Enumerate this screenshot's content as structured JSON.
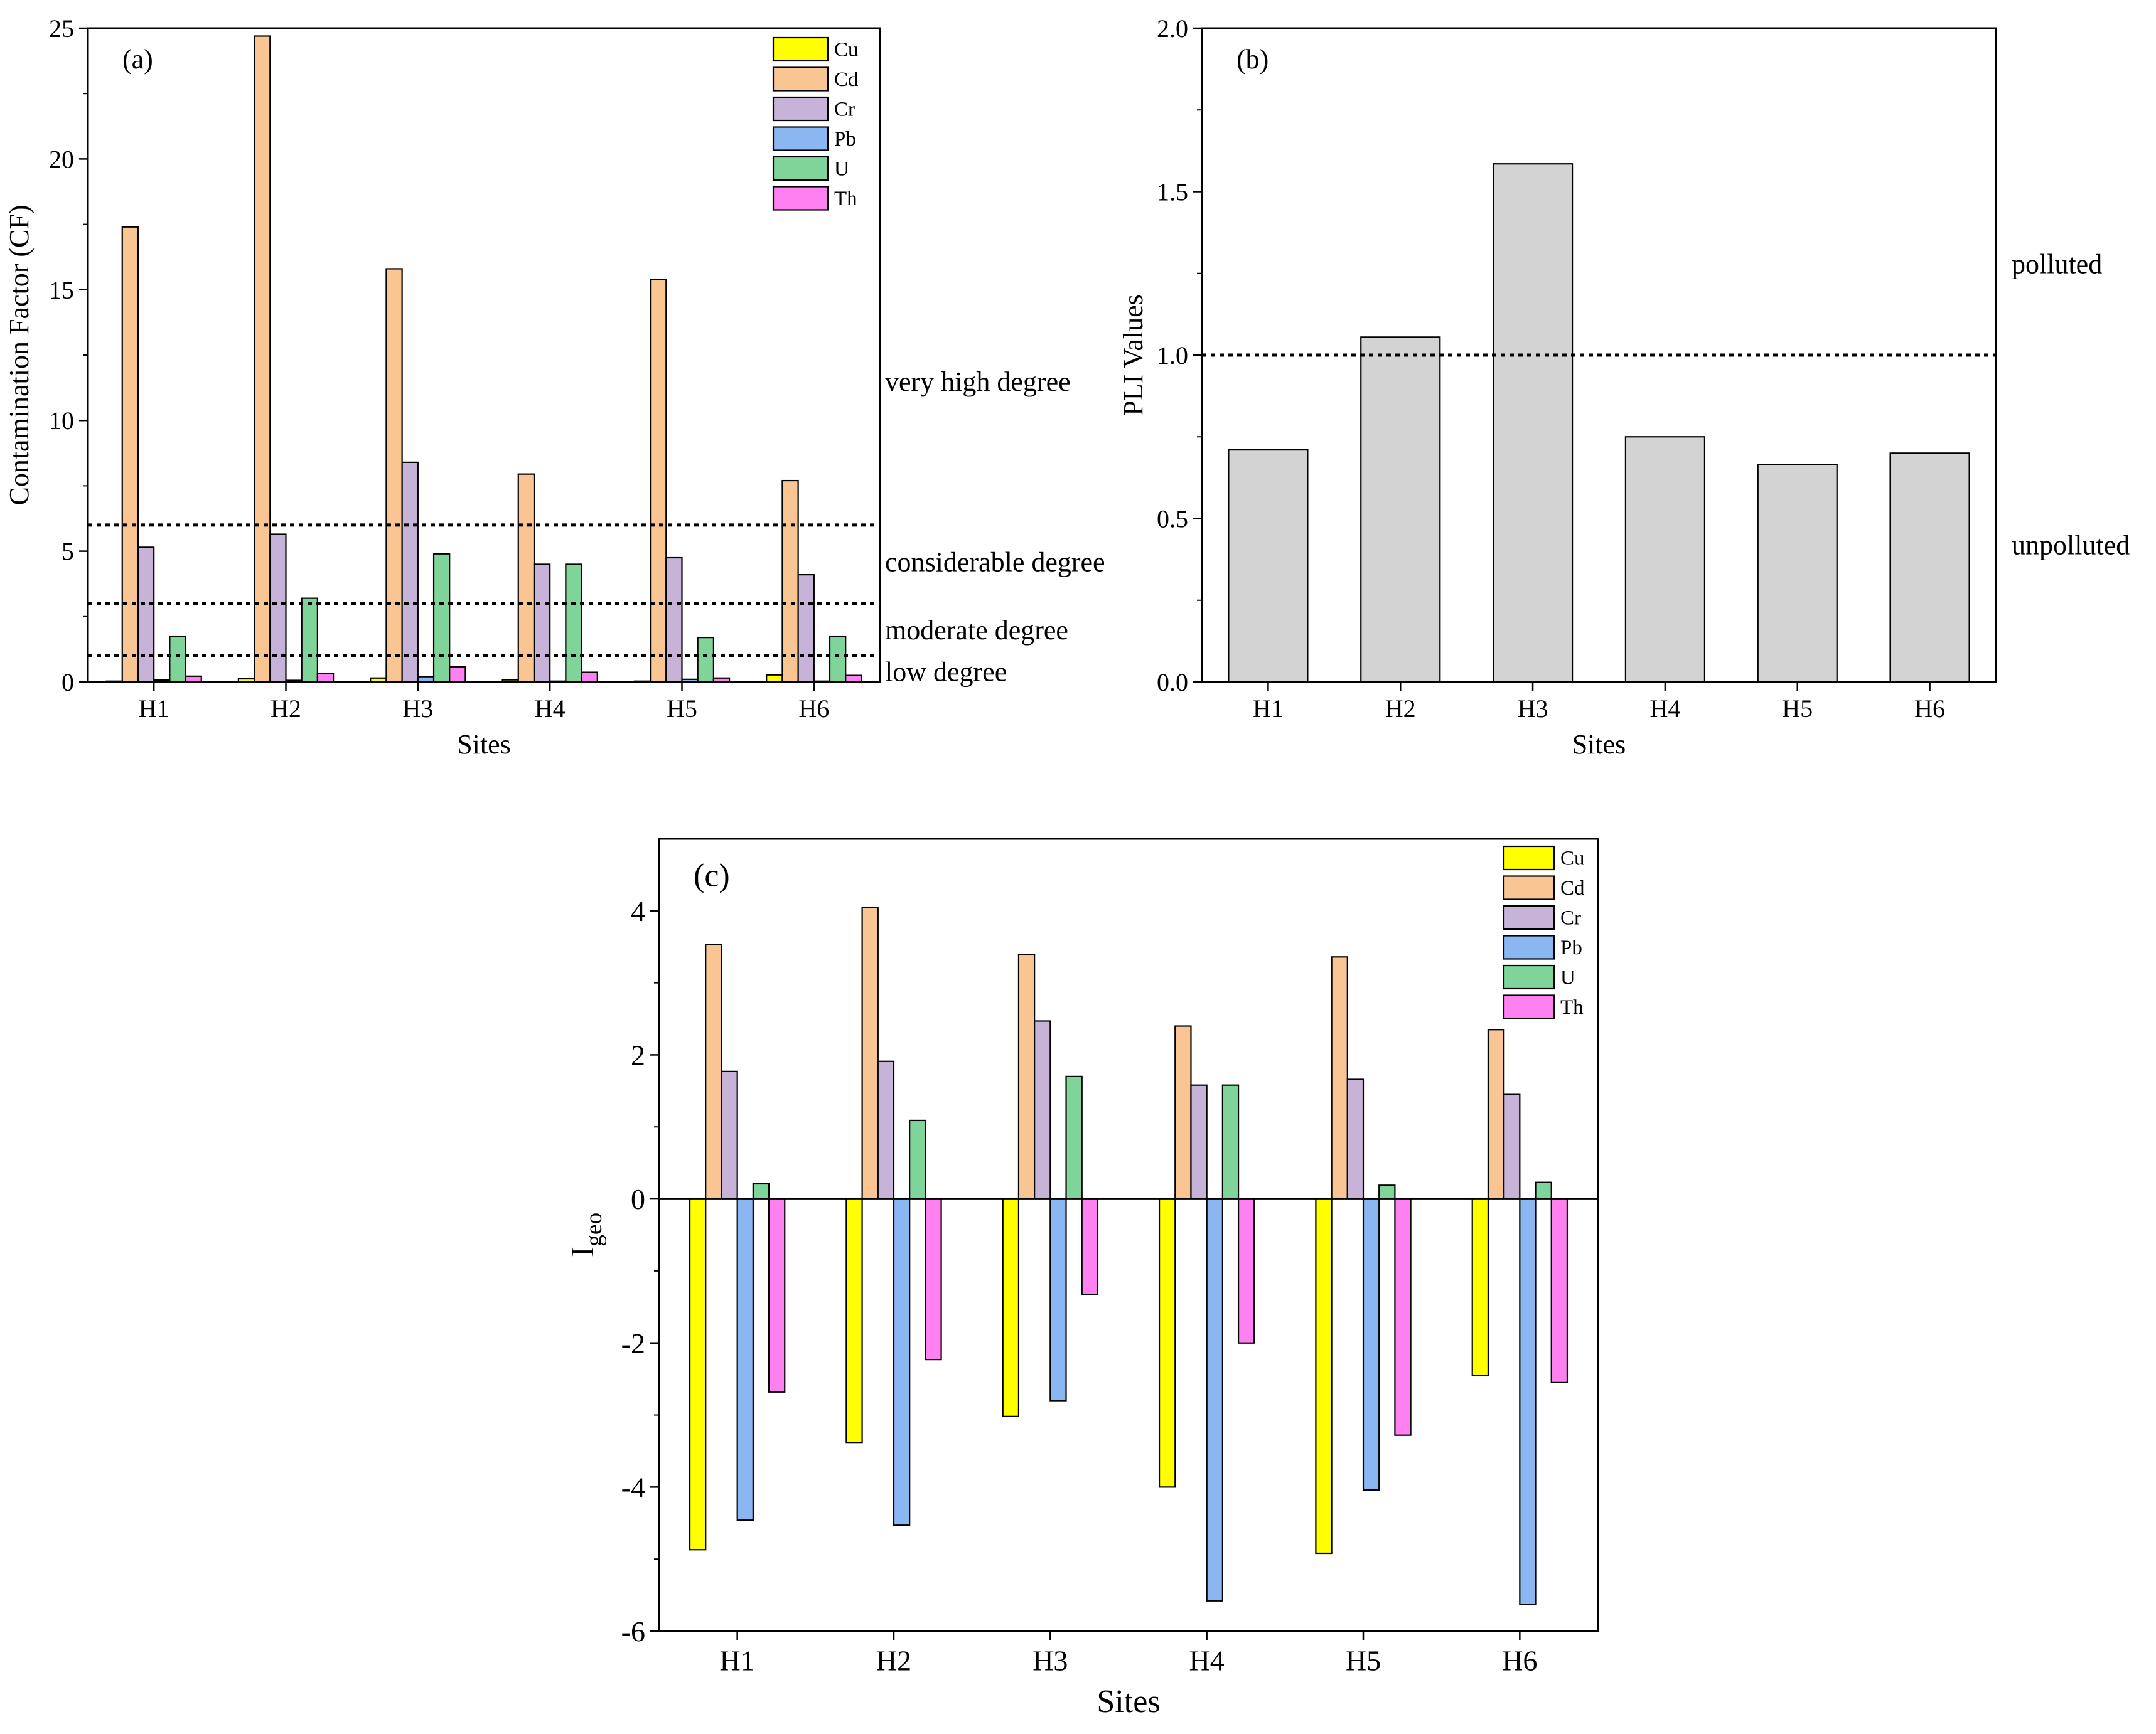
{
  "chart_data": [
    {
      "id": "a",
      "type": "bar",
      "panel_label": "(a)",
      "xlabel": "Sites",
      "ylabel": "Contamination Factor (CF)",
      "categories": [
        "H1",
        "H2",
        "H3",
        "H4",
        "H5",
        "H6"
      ],
      "ylim": [
        0,
        25
      ],
      "yticks": [
        0,
        5,
        10,
        15,
        20,
        25
      ],
      "ytick_labels": [
        "0",
        "5",
        "10",
        "15",
        "20",
        "25"
      ],
      "series": [
        {
          "name": "Cu",
          "color": "#ffff00",
          "values": [
            0.03,
            0.12,
            0.15,
            0.08,
            0.03,
            0.27
          ]
        },
        {
          "name": "Cd",
          "color": "#f8c593",
          "values": [
            17.4,
            24.7,
            15.8,
            7.95,
            15.4,
            7.7
          ]
        },
        {
          "name": "Cr",
          "color": "#c8b3d8",
          "values": [
            5.15,
            5.65,
            8.4,
            4.5,
            4.75,
            4.1
          ]
        },
        {
          "name": "Pb",
          "color": "#8ab7f1",
          "values": [
            0.07,
            0.06,
            0.2,
            0.03,
            0.1,
            0.03
          ]
        },
        {
          "name": "U",
          "color": "#7fd49a",
          "values": [
            1.75,
            3.2,
            4.9,
            4.5,
            1.7,
            1.75
          ]
        },
        {
          "name": "Th",
          "color": "#ff80f0",
          "values": [
            0.22,
            0.33,
            0.58,
            0.37,
            0.15,
            0.25
          ]
        }
      ],
      "reference_lines": [
        6,
        3,
        1
      ],
      "annotations": [
        {
          "text": "very high degree",
          "y": 11.5
        },
        {
          "text": "considerable degree",
          "y": 4.6
        },
        {
          "text": "moderate degree",
          "y": 2.0
        },
        {
          "text": "low degree",
          "y": 0.4
        }
      ]
    },
    {
      "id": "b",
      "type": "bar",
      "panel_label": "(b)",
      "xlabel": "Sites",
      "ylabel": "PLI Values",
      "categories": [
        "H1",
        "H2",
        "H3",
        "H4",
        "H5",
        "H6"
      ],
      "ylim": [
        0,
        2.0
      ],
      "yticks": [
        0,
        0.5,
        1.0,
        1.5,
        2.0
      ],
      "ytick_labels": [
        "0.0",
        "0.5",
        "1.0",
        "1.5",
        "2.0"
      ],
      "series": [
        {
          "name": "PLI",
          "color": "#d3d3d3",
          "values": [
            0.71,
            1.055,
            1.585,
            0.75,
            0.665,
            0.7
          ]
        }
      ],
      "reference_lines": [
        1.0
      ],
      "annotations": [
        {
          "text": "polluted",
          "y": 1.28
        },
        {
          "text": "unpolluted",
          "y": 0.42
        }
      ]
    },
    {
      "id": "c",
      "type": "bar",
      "panel_label": "(c)",
      "xlabel": "Sites",
      "ylabel": "I",
      "ylabel_subscript": "geo",
      "categories": [
        "H1",
        "H2",
        "H3",
        "H4",
        "H5",
        "H6"
      ],
      "ylim": [
        -6,
        5
      ],
      "yticks": [
        -6,
        -4,
        -2,
        0,
        2,
        4
      ],
      "ytick_labels": [
        "-6",
        "-4",
        "-2",
        "0",
        "2",
        "4"
      ],
      "series": [
        {
          "name": "Cu",
          "color": "#ffff00",
          "values": [
            -4.87,
            -3.38,
            -3.02,
            -4.0,
            -4.92,
            -2.45
          ]
        },
        {
          "name": "Cd",
          "color": "#f8c593",
          "values": [
            3.53,
            4.05,
            3.39,
            2.4,
            3.36,
            2.35
          ]
        },
        {
          "name": "Cr",
          "color": "#c8b3d8",
          "values": [
            1.77,
            1.91,
            2.47,
            1.58,
            1.66,
            1.45
          ]
        },
        {
          "name": "Pb",
          "color": "#8ab7f1",
          "values": [
            -4.46,
            -4.53,
            -2.8,
            -5.58,
            -4.04,
            -5.63
          ]
        },
        {
          "name": "U",
          "color": "#7fd49a",
          "values": [
            0.21,
            1.09,
            1.7,
            1.58,
            0.19,
            0.23
          ]
        },
        {
          "name": "Th",
          "color": "#ff80f0",
          "values": [
            -2.68,
            -2.23,
            -1.33,
            -2.0,
            -3.28,
            -2.55
          ]
        }
      ]
    }
  ]
}
